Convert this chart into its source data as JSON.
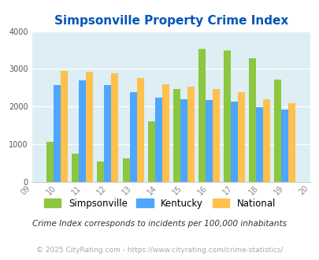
{
  "title": "Simpsonville Property Crime Index",
  "years": [
    2010,
    2011,
    2012,
    2013,
    2014,
    2015,
    2016,
    2017,
    2018,
    2019
  ],
  "simpsonville": [
    1075,
    750,
    550,
    625,
    1600,
    2475,
    3525,
    3500,
    3275,
    2725
  ],
  "kentucky": [
    2575,
    2700,
    2575,
    2390,
    2240,
    2190,
    2175,
    2125,
    1975,
    1925
  ],
  "national": [
    2950,
    2925,
    2875,
    2750,
    2600,
    2525,
    2475,
    2390,
    2190,
    2100
  ],
  "color_simpsonville": "#8dc63f",
  "color_kentucky": "#4da6ff",
  "color_national": "#ffc04d",
  "bg_color": "#ddeef4",
  "title_color": "#0055bb",
  "ylim": [
    0,
    4000
  ],
  "xlabel_years": [
    "09",
    "10",
    "11",
    "12",
    "13",
    "14",
    "15",
    "16",
    "17",
    "18",
    "19",
    "20"
  ],
  "footnote1": "Crime Index corresponds to incidents per 100,000 inhabitants",
  "footnote2": "© 2025 CityRating.com - https://www.cityrating.com/crime-statistics/"
}
